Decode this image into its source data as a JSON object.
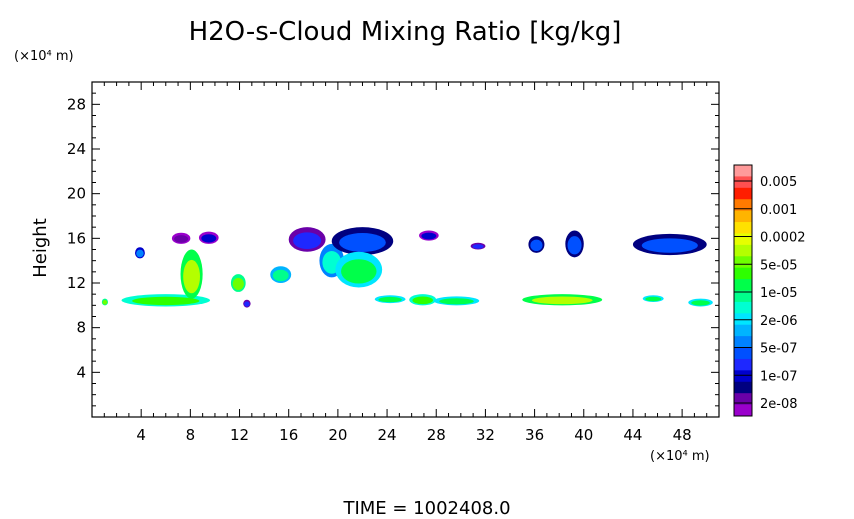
{
  "chart_data": {
    "type": "heatmap",
    "title": "H2O-s-Cloud Mixing Ratio [kg/kg]",
    "ylabel": "Height",
    "y_unit": "(×10⁴ m)",
    "x_unit": "(×10⁴ m)",
    "xlim": [
      0,
      51
    ],
    "ylim": [
      0,
      30
    ],
    "x_ticks": [
      "4",
      "8",
      "12",
      "16",
      "20",
      "24",
      "28",
      "32",
      "36",
      "40",
      "44",
      "48"
    ],
    "y_ticks": [
      "4",
      "8",
      "12",
      "16",
      "20",
      "24",
      "28"
    ],
    "colorbar_labels": [
      "0.005",
      "0.001",
      "0.0002",
      "5e-05",
      "1e-05",
      "2e-06",
      "5e-07",
      "1e-07",
      "2e-08"
    ],
    "colorbar_colors": [
      "#ff9a9a",
      "#ff5050",
      "#ff1e00",
      "#ff7a00",
      "#ffb400",
      "#ffe100",
      "#e6ff00",
      "#b4ff00",
      "#6eff00",
      "#2eff00",
      "#00ff4a",
      "#00ff8c",
      "#00ffd2",
      "#00e6ff",
      "#00b4ff",
      "#0082ff",
      "#0050ff",
      "#1e28ff",
      "#0000cc",
      "#000080",
      "#6a00a8",
      "#9a00cc"
    ],
    "footer": "TIME = 1002408.0",
    "cloud_regions": [
      {
        "x": [
          0.8,
          1.3
        ],
        "y": [
          10.0,
          10.6
        ],
        "level": 8
      },
      {
        "x": [
          2.4,
          9.6
        ],
        "y": [
          9.9,
          11.0
        ],
        "level": 9
      },
      {
        "x": [
          3.5,
          4.3
        ],
        "y": [
          14.2,
          15.2
        ],
        "level": 15
      },
      {
        "x": [
          7.2,
          9.0
        ],
        "y": [
          10.6,
          15.0
        ],
        "level": 7
      },
      {
        "x": [
          6.5,
          8.0
        ],
        "y": [
          15.5,
          16.5
        ],
        "level": 20
      },
      {
        "x": [
          8.7,
          10.3
        ],
        "y": [
          15.5,
          16.6
        ],
        "level": 18
      },
      {
        "x": [
          11.3,
          12.5
        ],
        "y": [
          11.2,
          12.8
        ],
        "level": 8
      },
      {
        "x": [
          12.3,
          12.9
        ],
        "y": [
          9.8,
          10.5
        ],
        "level": 17
      },
      {
        "x": [
          14.5,
          16.2
        ],
        "y": [
          12.0,
          13.5
        ],
        "level": 11
      },
      {
        "x": [
          16.0,
          19.0
        ],
        "y": [
          14.8,
          17.0
        ],
        "level": 17
      },
      {
        "x": [
          18.5,
          20.5
        ],
        "y": [
          12.5,
          15.5
        ],
        "level": 12
      },
      {
        "x": [
          19.5,
          24.5
        ],
        "y": [
          14.5,
          17.0
        ],
        "level": 16
      },
      {
        "x": [
          19.8,
          23.6
        ],
        "y": [
          11.6,
          14.8
        ],
        "level": 10
      },
      {
        "x": [
          23.0,
          25.5
        ],
        "y": [
          10.2,
          10.9
        ],
        "level": 10
      },
      {
        "x": [
          25.8,
          28.0
        ],
        "y": [
          10.0,
          11.0
        ],
        "level": 9
      },
      {
        "x": [
          26.6,
          28.2
        ],
        "y": [
          15.8,
          16.7
        ],
        "level": 18
      },
      {
        "x": [
          27.8,
          31.5
        ],
        "y": [
          10.0,
          10.8
        ],
        "level": 10
      },
      {
        "x": [
          30.8,
          32.0
        ],
        "y": [
          15.0,
          15.6
        ],
        "level": 17
      },
      {
        "x": [
          35.0,
          41.5
        ],
        "y": [
          10.0,
          11.0
        ],
        "level": 7
      },
      {
        "x": [
          35.5,
          36.8
        ],
        "y": [
          14.7,
          16.2
        ],
        "level": 16
      },
      {
        "x": [
          38.5,
          40.0
        ],
        "y": [
          14.3,
          16.7
        ],
        "level": 16
      },
      {
        "x": [
          44.0,
          50.0
        ],
        "y": [
          14.5,
          16.4
        ],
        "level": 16
      },
      {
        "x": [
          44.8,
          46.5
        ],
        "y": [
          10.3,
          10.9
        ],
        "level": 10
      },
      {
        "x": [
          48.5,
          50.5
        ],
        "y": [
          9.9,
          10.6
        ],
        "level": 10
      }
    ]
  }
}
